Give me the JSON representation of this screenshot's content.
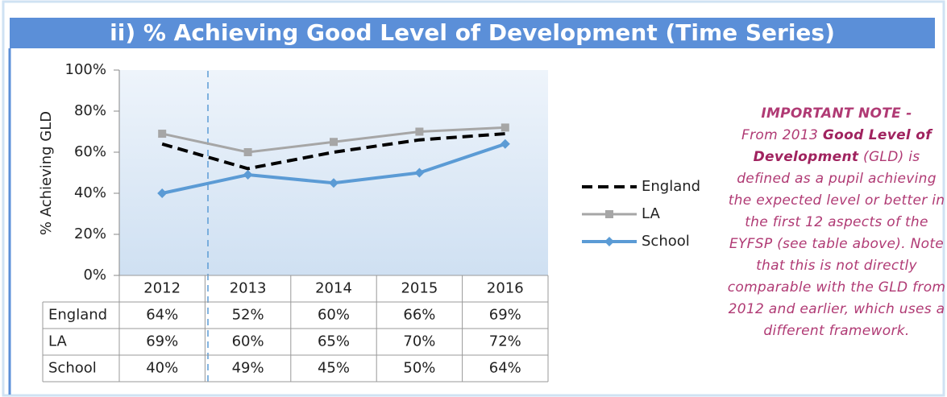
{
  "chart_data": {
    "type": "line",
    "title": "ii) % Achieving Good Level of Development (Time Series)",
    "y_label": "% Achieving GLD",
    "categories": [
      "2012",
      "2013",
      "2014",
      "2015",
      "2016"
    ],
    "series": [
      {
        "name": "England",
        "color": "#000000",
        "values": [
          64,
          52,
          60,
          66,
          69
        ],
        "value_labels": [
          "64%",
          "52%",
          "60%",
          "66%",
          "69%"
        ]
      },
      {
        "name": "LA",
        "color": "#a6a6a6",
        "values": [
          69,
          60,
          65,
          70,
          72
        ],
        "value_labels": [
          "69%",
          "60%",
          "65%",
          "70%",
          "72%"
        ]
      },
      {
        "name": "School",
        "color": "#5b9bd5",
        "values": [
          40,
          49,
          45,
          50,
          64
        ],
        "value_labels": [
          "40%",
          "49%",
          "45%",
          "50%",
          "64%"
        ]
      }
    ],
    "ylim": [
      0,
      100
    ],
    "yticks": [
      {
        "value": 0,
        "label": "0%"
      },
      {
        "value": 20,
        "label": "20%"
      },
      {
        "value": 40,
        "label": "40%"
      },
      {
        "value": 60,
        "label": "60%"
      },
      {
        "value": 80,
        "label": "80%"
      },
      {
        "value": 100,
        "label": "100%"
      }
    ],
    "grid": false,
    "legend": "right"
  },
  "note": {
    "heading": "IMPORTANT NOTE -",
    "lead": "From 2013",
    "term": "Good Level of Development",
    "body": "(GLD) is defined as a pupil achieving the expected level or better in the first 12 aspects of the EYFSP (see table above). Note that this is not directly comparable with the GLD from 2012 and earlier, which uses a different framework."
  }
}
